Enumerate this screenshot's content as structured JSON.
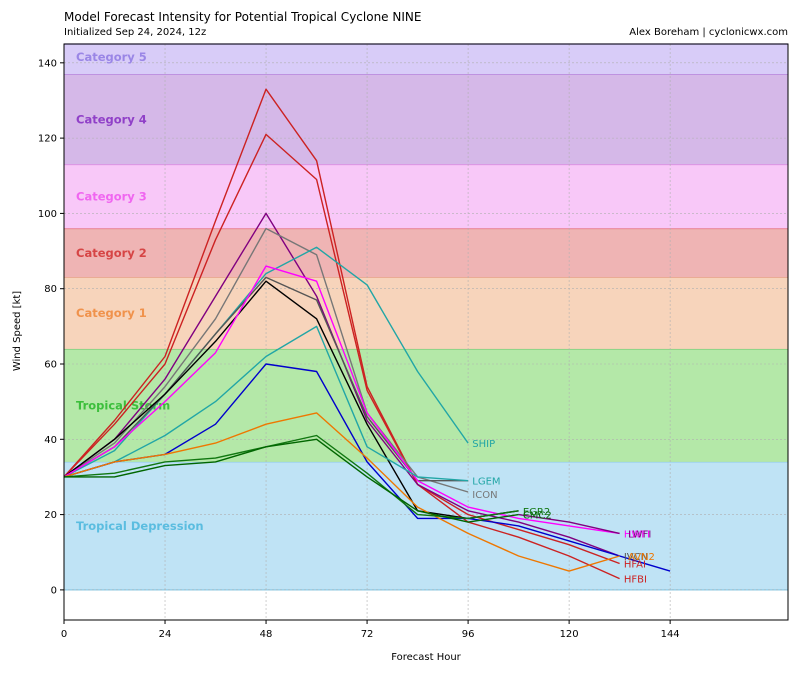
{
  "chart_data": {
    "type": "line",
    "title": "Model Forecast Intensity for Potential Tropical Cyclone NINE",
    "subtitle": "Initialized Sep 24, 2024, 12z",
    "credit": "Alex Boreham | cyclonicwx.com",
    "xlabel": "Forecast Hour",
    "ylabel": "Wind Speed [kt]",
    "xlim": [
      0,
      172
    ],
    "ylim": [
      -8,
      145
    ],
    "xticks": [
      0,
      24,
      48,
      72,
      96,
      120,
      144
    ],
    "yticks": [
      0,
      20,
      40,
      60,
      80,
      100,
      120,
      140
    ],
    "grid": true,
    "bands": [
      {
        "name": "Tropical Depression",
        "from": 0,
        "to": 34,
        "fill": "#bfe3f5",
        "edge": "#8ecbe6",
        "label_color": "#5bbde0"
      },
      {
        "name": "Tropical Storm",
        "from": 34,
        "to": 64,
        "fill": "#b4e8a8",
        "edge": "#6cc26a",
        "label_color": "#3cbf3c"
      },
      {
        "name": "Category 1",
        "from": 64,
        "to": 83,
        "fill": "#f7d4bb",
        "edge": "#e8a77e",
        "label_color": "#f0924c"
      },
      {
        "name": "Category 2",
        "from": 83,
        "to": 96,
        "fill": "#efb4b4",
        "edge": "#e06060",
        "label_color": "#d64545"
      },
      {
        "name": "Category 3",
        "from": 96,
        "to": 113,
        "fill": "#f8c8f8",
        "edge": "#e07ee0",
        "label_color": "#f066f0"
      },
      {
        "name": "Category 4",
        "from": 113,
        "to": 137,
        "fill": "#d5b8e8",
        "edge": "#b078d8",
        "label_color": "#9040c8"
      },
      {
        "name": "Category 5",
        "from": 137,
        "to": 145,
        "fill": "#d8ccf8",
        "edge": "#9c88e8",
        "label_color": "#9a86e6"
      }
    ],
    "series": [
      {
        "name": "",
        "color": "#cc2222",
        "x": [
          0,
          12,
          24,
          36,
          48,
          60,
          72,
          84,
          96,
          108,
          120,
          132
        ],
        "y": [
          30,
          45,
          62,
          98,
          133,
          114,
          54,
          28,
          18,
          14,
          9,
          3
        ]
      },
      {
        "name": "",
        "color": "#cc2222",
        "x": [
          0,
          12,
          24,
          36,
          48,
          60,
          72,
          84,
          96,
          108,
          120,
          132
        ],
        "y": [
          30,
          44,
          60,
          93,
          121,
          109,
          53,
          28,
          20,
          16,
          12,
          7
        ]
      },
      {
        "name": "",
        "color": "#800080",
        "x": [
          0,
          12,
          24,
          36,
          48,
          60,
          72,
          84,
          96,
          108,
          120,
          132
        ],
        "y": [
          30,
          40,
          56,
          78,
          100,
          78,
          45,
          28,
          21,
          18,
          14,
          9
        ]
      },
      {
        "name": "",
        "color": "#777777",
        "x": [
          0,
          12,
          24,
          36,
          48,
          60,
          72,
          84,
          96
        ],
        "y": [
          30,
          39,
          54,
          72,
          96,
          89,
          47,
          30,
          26
        ]
      },
      {
        "name": "",
        "color": "#22a6a6",
        "x": [
          0,
          12,
          24,
          36,
          48,
          60,
          72,
          84,
          96
        ],
        "y": [
          30,
          37,
          52,
          68,
          84,
          91,
          81,
          58,
          39
        ]
      },
      {
        "name": "",
        "color": "#555555",
        "x": [
          0,
          12,
          24,
          36,
          48,
          60,
          72,
          84,
          96
        ],
        "y": [
          30,
          38,
          52,
          68,
          83,
          77,
          46,
          29,
          29
        ]
      },
      {
        "name": "",
        "color": "#000000",
        "x": [
          0,
          12,
          24,
          36,
          48,
          60,
          72,
          84,
          96,
          108
        ],
        "y": [
          30,
          40,
          52,
          66,
          82,
          72,
          44,
          21,
          19,
          21
        ]
      },
      {
        "name": "",
        "color": "#ff00ff",
        "x": [
          0,
          12,
          24,
          36,
          48,
          60,
          72,
          84,
          96,
          108,
          120,
          132
        ],
        "y": [
          30,
          38,
          50,
          63,
          86,
          82,
          47,
          29,
          22,
          19,
          17,
          15
        ]
      },
      {
        "name": "",
        "color": "#22a6a6",
        "x": [
          0,
          12,
          24,
          36,
          48,
          60,
          72,
          84,
          96
        ],
        "y": [
          30,
          34,
          41,
          50,
          62,
          70,
          38,
          30,
          29
        ]
      },
      {
        "name": "",
        "color": "#0000cc",
        "x": [
          0,
          12,
          24,
          36,
          48,
          60,
          72,
          84,
          96,
          108,
          120,
          132,
          144
        ],
        "y": [
          30,
          34,
          36,
          44,
          60,
          58,
          34,
          19,
          19,
          17,
          13,
          9,
          5
        ]
      },
      {
        "name": "",
        "color": "#ee7700",
        "x": [
          0,
          12,
          24,
          36,
          48,
          60,
          72,
          84,
          96,
          108,
          120,
          132
        ],
        "y": [
          30,
          34,
          36,
          39,
          44,
          47,
          35,
          22,
          15,
          9,
          5,
          9
        ]
      },
      {
        "name": "",
        "color": "#117711",
        "x": [
          0,
          12,
          24,
          36,
          48,
          60,
          72,
          84,
          96,
          108
        ],
        "y": [
          30,
          31,
          34,
          35,
          38,
          41,
          31,
          20,
          19,
          21
        ]
      },
      {
        "name": "",
        "color": "#006600",
        "x": [
          0,
          12,
          24,
          36,
          48,
          60,
          72,
          84,
          96,
          108
        ],
        "y": [
          30,
          30,
          33,
          34,
          38,
          40,
          30,
          21,
          18,
          20
        ]
      },
      {
        "name": "",
        "color": "#800080",
        "x": [
          108,
          120,
          132
        ],
        "y": [
          20,
          18,
          15
        ]
      }
    ],
    "labels": [
      {
        "text": "SHIP",
        "x": 97,
        "y": 39,
        "color": "#22a6a6"
      },
      {
        "text": "LGEM",
        "x": 97,
        "y": 29,
        "color": "#22a6a6"
      },
      {
        "text": "ICON",
        "x": 97,
        "y": 25.5,
        "color": "#777777"
      },
      {
        "text": "EGR2",
        "x": 109,
        "y": 21,
        "color": "#117711"
      },
      {
        "text": "CMC2",
        "x": 109,
        "y": 20,
        "color": "#006600"
      },
      {
        "text": "HWFI",
        "x": 133,
        "y": 15,
        "color": "#ff00ff"
      },
      {
        "text": "LWFI",
        "x": 134,
        "y": 15,
        "color": "#800080"
      },
      {
        "text": "IVCN",
        "x": 133,
        "y": 9,
        "color": "#555555"
      },
      {
        "text": "AVN2",
        "x": 134,
        "y": 9,
        "color": "#ee7700"
      },
      {
        "text": "HFAI",
        "x": 133,
        "y": 7,
        "color": "#cc2222"
      },
      {
        "text": "HFBI",
        "x": 133,
        "y": 3,
        "color": "#cc2222"
      }
    ]
  }
}
